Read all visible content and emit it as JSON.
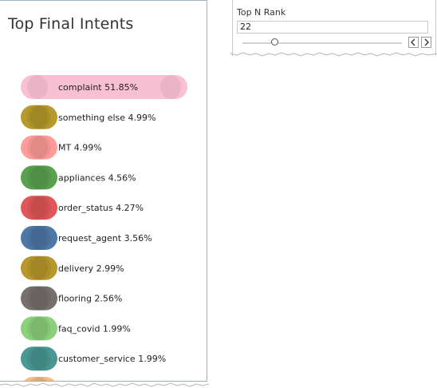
{
  "panel": {
    "title": "Top Final Intents"
  },
  "filter": {
    "label": "Top N Rank",
    "value": "22",
    "slider_fraction": 0.2,
    "prev_icon": "chevron-left-icon",
    "next_icon": "chevron-right-icon"
  },
  "chart_data": {
    "type": "bar",
    "orientation": "horizontal",
    "xlim": [
      0,
      51.85
    ],
    "categories": [
      "complaint",
      "something else",
      "MT",
      "appliances",
      "order_status",
      "request_agent",
      "delivery",
      "flooring",
      "faq_covid",
      "customer_service",
      ""
    ],
    "values": [
      51.85,
      4.99,
      4.99,
      4.56,
      4.27,
      3.56,
      2.99,
      2.56,
      1.99,
      1.99,
      null
    ],
    "labels": [
      "complaint  51.85%",
      "something else  4.99%",
      "MT  4.99%",
      "appliances  4.56%",
      "order_status  4.27%",
      "request_agent  3.56%",
      "delivery  2.99%",
      "flooring  2.56%",
      "faq_covid  1.99%",
      "customer_service  1.99%",
      ""
    ],
    "colors": [
      "#f9bfd3",
      "#b69a2c",
      "#ff9d9a",
      "#59a14f",
      "#e15759",
      "#4e79a7",
      "#b8982b",
      "#79706e",
      "#8cd17d",
      "#499894",
      "#ffbe7d"
    ]
  }
}
